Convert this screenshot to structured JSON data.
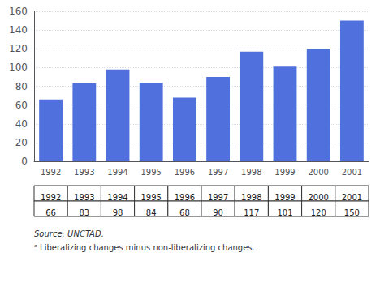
{
  "chart_data": {
    "type": "bar",
    "categories": [
      "1992",
      "1993",
      "1994",
      "1995",
      "1996",
      "1997",
      "1998",
      "1999",
      "2000",
      "2001"
    ],
    "values": [
      66,
      83,
      98,
      84,
      68,
      90,
      117,
      101,
      120,
      150
    ],
    "ylim": [
      0,
      160
    ],
    "yticks": [
      0,
      20,
      40,
      60,
      80,
      100,
      120,
      140,
      160
    ],
    "grid": true,
    "table": {
      "header": [
        "1992",
        "1993",
        "1994",
        "1995",
        "1996",
        "1997",
        "1998",
        "1999",
        "2000",
        "2001"
      ],
      "values": [
        66,
        83,
        98,
        84,
        68,
        90,
        117,
        101,
        120,
        150
      ]
    },
    "annotations": [
      "Source: UNCTAD.",
      "ᵃ Liberalizing changes minus non-liberalizing changes."
    ]
  }
}
